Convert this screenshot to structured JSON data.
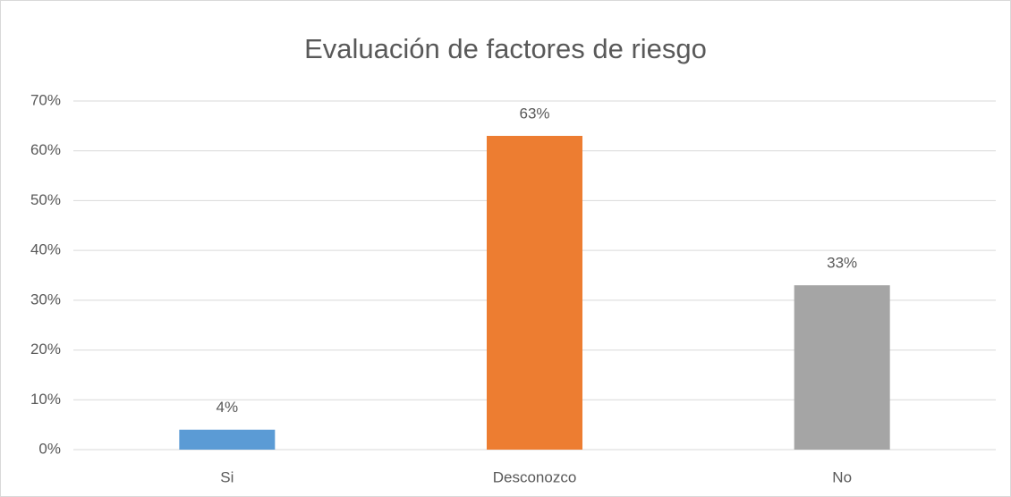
{
  "chart_data": {
    "type": "bar",
    "title": "Evaluación de factores de riesgo",
    "categories": [
      "Si",
      "Desconozco",
      "No"
    ],
    "values": [
      4,
      63,
      33
    ],
    "value_labels": [
      "4%",
      "63%",
      "33%"
    ],
    "colors": [
      "#5b9bd5",
      "#ed7d31",
      "#a5a5a5"
    ],
    "ylim": [
      0,
      70
    ],
    "yticks": [
      {
        "value": 0,
        "label": "0%"
      },
      {
        "value": 10,
        "label": "10%"
      },
      {
        "value": 20,
        "label": "20%"
      },
      {
        "value": 30,
        "label": "30%"
      },
      {
        "value": 40,
        "label": "40%"
      },
      {
        "value": 50,
        "label": "50%"
      },
      {
        "value": 60,
        "label": "60%"
      },
      {
        "value": 70,
        "label": "70%"
      }
    ],
    "grid": true
  }
}
